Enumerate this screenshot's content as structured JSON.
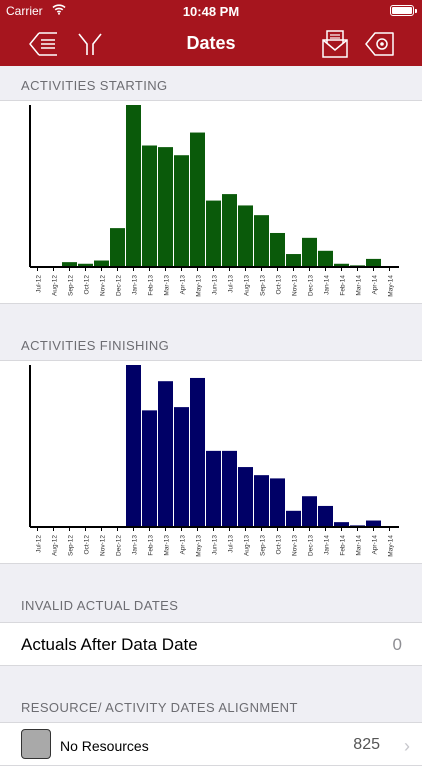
{
  "status": {
    "carrier": "Carrier",
    "time": "10:48 PM"
  },
  "nav": {
    "title": "Dates"
  },
  "months": [
    "Jul-12",
    "Aug-12",
    "Sep-12",
    "Oct-12",
    "Nov-12",
    "Dec-12",
    "Jan-13",
    "Feb-13",
    "Mar-13",
    "Apr-13",
    "May-13",
    "Jun-13",
    "Jul-13",
    "Aug-13",
    "Sep-13",
    "Oct-13",
    "Nov-13",
    "Dec-13",
    "Jan-14",
    "Feb-14",
    "Mar-14",
    "Apr-14",
    "May-14"
  ],
  "sections": {
    "starting": "ACTIVITIES STARTING",
    "finishing": "ACTIVITIES FINISHING",
    "invalid": "INVALID ACTUAL DATES",
    "resource": "RESOURCE/ ACTIVITY DATES ALIGNMENT"
  },
  "chart_data": [
    {
      "type": "bar",
      "categories": [
        "Jul-12",
        "Aug-12",
        "Sep-12",
        "Oct-12",
        "Nov-12",
        "Dec-12",
        "Jan-13",
        "Feb-13",
        "Mar-13",
        "Apr-13",
        "May-13",
        "Jun-13",
        "Jul-13",
        "Aug-13",
        "Sep-13",
        "Oct-13",
        "Nov-13",
        "Dec-13",
        "Jan-14",
        "Feb-14",
        "Mar-14",
        "Apr-14",
        "May-14"
      ],
      "values": [
        0,
        0,
        3,
        2,
        4,
        24,
        100,
        75,
        74,
        69,
        83,
        41,
        45,
        38,
        32,
        21,
        8,
        18,
        10,
        2,
        1,
        5,
        0
      ],
      "color": "#0a5a0a",
      "ylim": [
        0,
        100
      ]
    },
    {
      "type": "bar",
      "categories": [
        "Jul-12",
        "Aug-12",
        "Sep-12",
        "Oct-12",
        "Nov-12",
        "Dec-12",
        "Jan-13",
        "Feb-13",
        "Mar-13",
        "Apr-13",
        "May-13",
        "Jun-13",
        "Jul-13",
        "Aug-13",
        "Sep-13",
        "Oct-13",
        "Nov-13",
        "Dec-13",
        "Jan-14",
        "Feb-14",
        "Mar-14",
        "Apr-14",
        "May-14"
      ],
      "values": [
        0,
        0,
        0,
        0,
        0,
        0,
        100,
        72,
        90,
        74,
        92,
        47,
        47,
        37,
        32,
        30,
        10,
        19,
        13,
        3,
        1,
        4,
        0
      ],
      "color": "#000066",
      "ylim": [
        0,
        100
      ]
    }
  ],
  "invalid_row": {
    "label": "Actuals After Data Date",
    "value": "0"
  },
  "resource_row": {
    "label": "No Resources",
    "value": "825"
  },
  "colors": {
    "brand": "#a6151e",
    "start_bar": "#0a5a0a",
    "finish_bar": "#000066"
  }
}
